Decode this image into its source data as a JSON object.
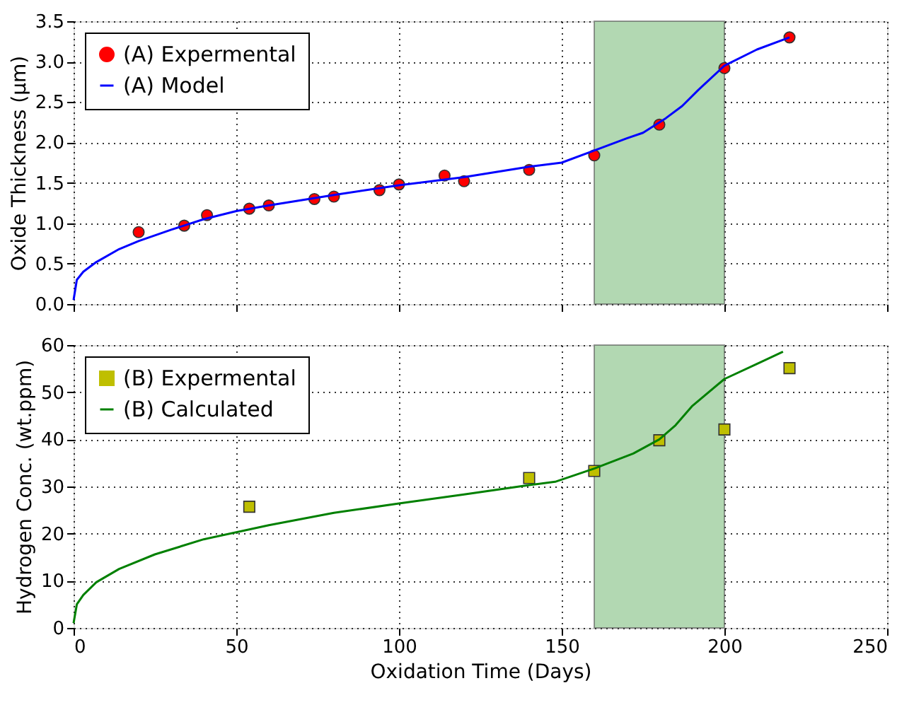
{
  "chart_data": [
    {
      "type": "scatter",
      "ylabel": "Oxide Thickness (μm)",
      "xlim": [
        0,
        250
      ],
      "xticks": [
        0,
        50,
        100,
        150,
        200,
        250
      ],
      "ylim": [
        0,
        3.5
      ],
      "yticks": [
        {
          "value": 0,
          "label": "0.0"
        },
        0.5,
        {
          "value": 1,
          "label": "1.0"
        },
        1.5,
        {
          "value": 2,
          "label": "2.0"
        },
        2.5,
        {
          "value": 3,
          "label": "3.0"
        },
        3.5
      ],
      "tick_labels": "y",
      "grid": true,
      "legend": "top left",
      "bands": [
        {
          "axis": "x",
          "from": 160,
          "to": 200,
          "color": "#b2d8b2"
        }
      ],
      "series": [
        {
          "name": "(A) Expermental",
          "type": "scatter",
          "marker": "circle",
          "color": "#ff0000",
          "x": [
            20,
            34,
            41,
            54,
            60,
            74,
            80,
            94,
            100,
            114,
            120,
            140,
            160,
            180,
            200,
            220
          ],
          "values": [
            0.89,
            0.97,
            1.1,
            1.18,
            1.22,
            1.3,
            1.33,
            1.41,
            1.48,
            1.59,
            1.52,
            1.66,
            1.84,
            2.22,
            2.92,
            3.3
          ]
        },
        {
          "name": "(A) Model",
          "type": "line",
          "color": "#0000ff",
          "x": [
            0,
            1,
            3,
            7,
            14,
            20,
            30,
            40,
            50,
            60,
            80,
            100,
            120,
            140,
            150,
            160,
            170,
            175,
            182,
            187,
            192,
            200,
            210,
            220
          ],
          "values": [
            0.05,
            0.3,
            0.4,
            0.52,
            0.68,
            0.78,
            0.92,
            1.05,
            1.15,
            1.22,
            1.35,
            1.47,
            1.57,
            1.7,
            1.75,
            1.9,
            2.05,
            2.12,
            2.3,
            2.45,
            2.65,
            2.95,
            3.15,
            3.3
          ]
        }
      ]
    },
    {
      "type": "scatter",
      "ylabel": "Hydrogen Conc. (wt.ppm)",
      "xlabel": "Oxidation Time (Days)",
      "xlim": [
        0,
        250
      ],
      "xticks": [
        0,
        50,
        100,
        150,
        200,
        250
      ],
      "ylim": [
        0,
        60
      ],
      "yticks": [
        0,
        10,
        20,
        30,
        40,
        50,
        60
      ],
      "grid": true,
      "legend": "top left",
      "bands": [
        {
          "axis": "x",
          "from": 160,
          "to": 200,
          "color": "#b2d8b2"
        }
      ],
      "series": [
        {
          "name": "(B) Expermental",
          "type": "scatter",
          "marker": "square",
          "color": "#bfbf00",
          "x": [
            54,
            140,
            160,
            180,
            200,
            220
          ],
          "values": [
            25.7,
            31.8,
            33.3,
            39.8,
            42.1,
            55.1
          ]
        },
        {
          "name": "(B) Calculated",
          "type": "line",
          "color": "#008000",
          "x": [
            0,
            1,
            3,
            7,
            14,
            25,
            40,
            60,
            80,
            100,
            120,
            140,
            148,
            160,
            172,
            180,
            185,
            190,
            200,
            210,
            218
          ],
          "values": [
            1,
            5,
            7,
            9.7,
            12.5,
            15.6,
            18.8,
            21.8,
            24.4,
            26.4,
            28.3,
            30.3,
            31,
            33.8,
            37,
            40,
            43,
            47,
            52.8,
            56,
            58.6
          ]
        }
      ]
    }
  ]
}
